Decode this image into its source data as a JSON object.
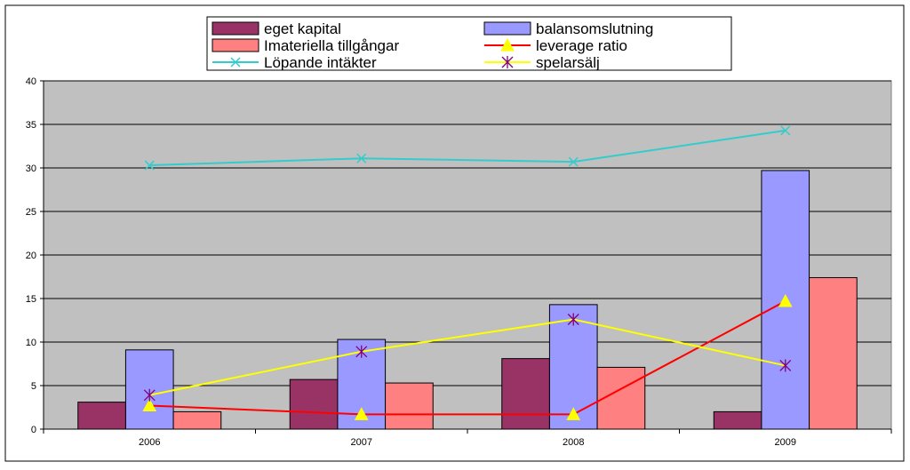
{
  "chart_data": {
    "type": "bar",
    "categories": [
      "2006",
      "2007",
      "2008",
      "2009"
    ],
    "ylim": [
      0,
      40
    ],
    "yticks": [
      0,
      5,
      10,
      15,
      20,
      25,
      30,
      35,
      40
    ],
    "grid": true,
    "legend_position": "top",
    "plot_background": "#c0c0c0",
    "series": [
      {
        "name": "eget kapital",
        "kind": "bar",
        "color": "#993366",
        "values": [
          3.1,
          5.7,
          8.1,
          2.0
        ]
      },
      {
        "name": "balansomslutning",
        "kind": "bar",
        "color": "#9999ff",
        "values": [
          9.1,
          10.3,
          14.3,
          29.7
        ]
      },
      {
        "name": "Imateriella tillgångar",
        "kind": "bar",
        "color": "#ff8080",
        "values": [
          2.0,
          5.3,
          7.1,
          17.4
        ]
      },
      {
        "name": "leverage ratio",
        "kind": "line",
        "color": "#ff0000",
        "marker": "triangle",
        "marker_color": "#ffff00",
        "values": [
          2.7,
          1.7,
          1.7,
          14.7
        ]
      },
      {
        "name": "Löpande intäkter",
        "kind": "line",
        "color": "#33cccc",
        "marker": "x",
        "values": [
          30.3,
          31.1,
          30.7,
          34.3
        ]
      },
      {
        "name": "spelarsälj",
        "kind": "line",
        "color": "#ffff00",
        "marker": "star",
        "marker_color": "#800080",
        "values": [
          3.9,
          8.9,
          12.6,
          7.3
        ]
      }
    ]
  }
}
